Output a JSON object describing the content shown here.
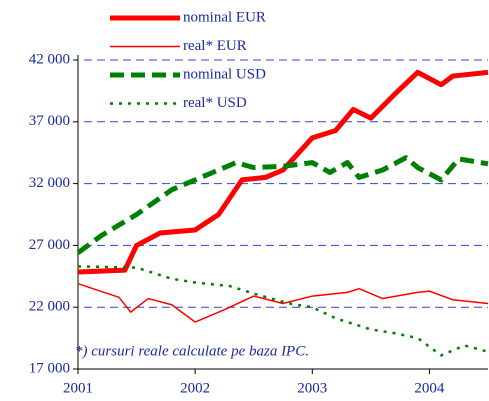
{
  "chart_data": {
    "type": "line",
    "annotation": "*) cursuri reale calculate pe baza IPC.",
    "xlim": [
      2001,
      2004.5
    ],
    "xticks": [
      2001,
      2002,
      2003,
      2004
    ],
    "ylim": [
      17000,
      42000
    ],
    "yticks": [
      {
        "value": 17000,
        "label": "17 000"
      },
      {
        "value": 22000,
        "label": "22 000"
      },
      {
        "value": 27000,
        "label": "27 000"
      },
      {
        "value": 32000,
        "label": "32 000"
      },
      {
        "value": 37000,
        "label": "37 000"
      },
      {
        "value": 42000,
        "label": "42 000"
      }
    ],
    "grid": true,
    "grid_color": "#3344cc",
    "legend": "top-left",
    "series": [
      {
        "name": "nominal EUR",
        "color": "#ff0000",
        "width": 5,
        "dash": "solid",
        "x": [
          2001,
          2001.4,
          2001.5,
          2001.7,
          2002.0,
          2002.2,
          2002.4,
          2002.6,
          2002.75,
          2003.0,
          2003.2,
          2003.35,
          2003.5,
          2003.7,
          2003.9,
          2004.1,
          2004.2,
          2004.5
        ],
        "values": [
          24850,
          25000,
          27000,
          28000,
          28250,
          29500,
          32300,
          32500,
          33100,
          35700,
          36300,
          38000,
          37300,
          39200,
          41000,
          40000,
          40700,
          41000
        ]
      },
      {
        "name": "real* EUR",
        "color": "#ff0000",
        "width": 1.5,
        "dash": "solid",
        "x": [
          2001,
          2001.35,
          2001.45,
          2001.6,
          2001.8,
          2002.0,
          2002.25,
          2002.5,
          2002.75,
          2003.0,
          2003.3,
          2003.4,
          2003.6,
          2003.9,
          2004.0,
          2004.2,
          2004.5
        ],
        "values": [
          23900,
          22800,
          21600,
          22700,
          22200,
          20800,
          21800,
          22900,
          22300,
          22900,
          23200,
          23500,
          22700,
          23200,
          23300,
          22600,
          22300
        ]
      },
      {
        "name": "nominal USD",
        "color": "#008000",
        "width": 5,
        "dash": "dashed",
        "x": [
          2001,
          2001.2,
          2001.5,
          2001.8,
          2002.0,
          2002.2,
          2002.35,
          2002.5,
          2002.75,
          2003.0,
          2003.15,
          2003.3,
          2003.4,
          2003.6,
          2003.8,
          2003.9,
          2004.1,
          2004.25,
          2004.5
        ],
        "values": [
          26400,
          27800,
          29500,
          31500,
          32300,
          33100,
          33700,
          33300,
          33400,
          33700,
          32900,
          33700,
          32500,
          33100,
          34100,
          33300,
          32300,
          34000,
          33600
        ]
      },
      {
        "name": "real* USD",
        "color": "#008000",
        "width": 2.5,
        "dash": "dotted",
        "x": [
          2001,
          2001.5,
          2001.8,
          2002.0,
          2002.3,
          2002.5,
          2002.8,
          2003.0,
          2003.2,
          2003.5,
          2003.7,
          2003.9,
          2004.1,
          2004.3,
          2004.5
        ],
        "values": [
          25300,
          25200,
          24300,
          24000,
          23700,
          23100,
          22300,
          22000,
          21100,
          20200,
          19900,
          19500,
          18100,
          18900,
          18400
        ]
      }
    ]
  }
}
